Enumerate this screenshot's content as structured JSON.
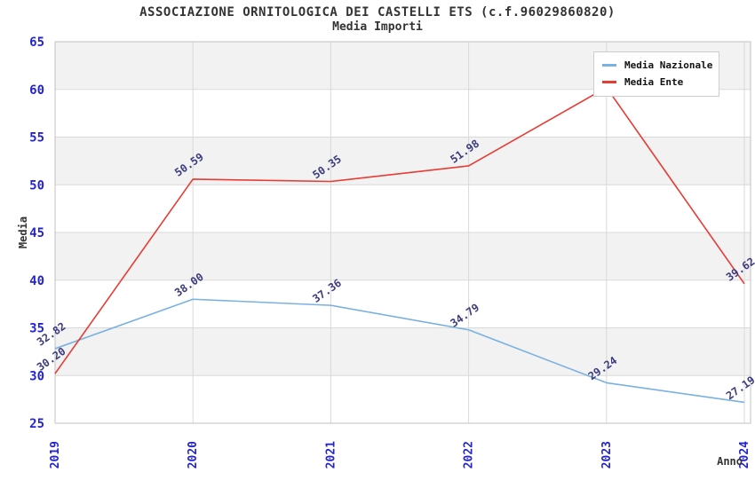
{
  "title": "ASSOCIAZIONE ORNITOLOGICA DEI CASTELLI ETS (c.f.96029860820)",
  "subtitle": "Media Importi",
  "chart_data": {
    "type": "line",
    "x": [
      "2019",
      "2020",
      "2021",
      "2022",
      "2023",
      "2024"
    ],
    "xlabel": "Anno",
    "ylabel": "Media",
    "ylim": [
      25,
      65
    ],
    "y_ticks": [
      25,
      30,
      35,
      40,
      45,
      50,
      55,
      60,
      65
    ],
    "grid": true,
    "legend_position": "top-right",
    "series": [
      {
        "name": "Media Nazionale",
        "color": "#79b1e1",
        "values": [
          32.82,
          38.0,
          37.36,
          34.79,
          29.24,
          27.19
        ],
        "labels": [
          "32.82",
          "38.00",
          "37.36",
          "34.79",
          "29.24",
          "27.19"
        ]
      },
      {
        "name": "Media Ente",
        "color": "#e73b34",
        "values": [
          30.2,
          50.59,
          50.35,
          51.98,
          60.2,
          39.62
        ],
        "labels": [
          "30.20",
          "50.59",
          "50.35",
          "51.98",
          "",
          "39.62"
        ]
      }
    ],
    "colors": {
      "tick_label": "#2424cf",
      "point_label": "#3c3c7e",
      "band_fill": "#f2f2f2",
      "grid_line": "#d9d9d9",
      "plot_border": "#c0c0c0",
      "axis_title": "#333333"
    }
  }
}
